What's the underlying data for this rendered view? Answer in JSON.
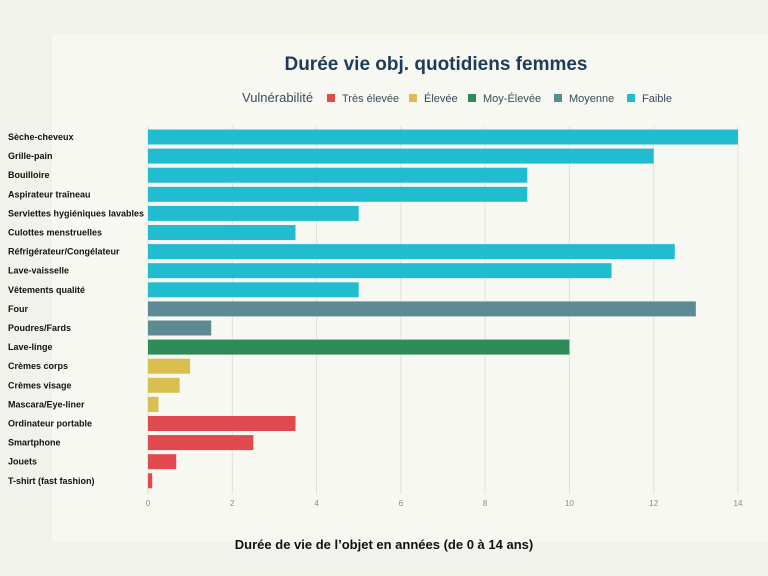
{
  "chart_data": {
    "type": "bar",
    "orientation": "horizontal",
    "title": "Durée vie obj. quotidiens femmes",
    "xlabel": "Durée de vie de l’objet en années (de 0 à 14 ans)",
    "ylabel": "",
    "xlim": [
      0,
      14
    ],
    "xticks": [
      0,
      2,
      4,
      6,
      8,
      10,
      12,
      14
    ],
    "grid": true,
    "legend": {
      "title": "Vulnérabilité",
      "position": "top",
      "entries": [
        {
          "key": "tres_elevee",
          "label": "Très élevée",
          "color": "#e04a4f"
        },
        {
          "key": "elevee",
          "label": "Élevée",
          "color": "#d9bf4f"
        },
        {
          "key": "moy_elevee",
          "label": "Moy-Élevée",
          "color": "#2e8b57"
        },
        {
          "key": "moyenne",
          "label": "Moyenne",
          "color": "#5e8a96"
        },
        {
          "key": "faible",
          "label": "Faible",
          "color": "#22bcd0"
        }
      ]
    },
    "categories": [
      "Sèche-cheveux",
      "Grille-pain",
      "Bouilloire",
      "Aspirateur traîneau",
      "Serviettes hygiéniques lavables",
      "Culottes menstruelles",
      "Réfrigérateur/Congélateur",
      "Lave-vaisselle",
      "Vêtements qualité",
      "Four",
      "Poudres/Fards",
      "Lave-linge",
      "Crèmes corps",
      "Crèmes visage",
      "Mascara/Eye-liner",
      "Ordinateur portable",
      "Smartphone",
      "Jouets",
      "T-shirt (fast fashion)"
    ],
    "values": [
      14,
      12,
      9,
      9,
      5,
      3.5,
      12.5,
      11,
      5,
      13,
      1.5,
      10,
      1,
      0.75,
      0.25,
      3.5,
      2.5,
      0.67,
      0.1
    ],
    "groups": [
      "faible",
      "faible",
      "faible",
      "faible",
      "faible",
      "faible",
      "faible",
      "faible",
      "faible",
      "moyenne",
      "moyenne",
      "moy_elevee",
      "elevee",
      "elevee",
      "elevee",
      "tres_elevee",
      "tres_elevee",
      "tres_elevee",
      "tres_elevee"
    ]
  }
}
